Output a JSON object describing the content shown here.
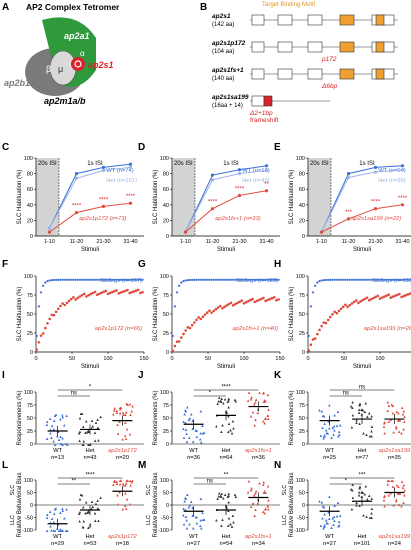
{
  "panel_letters": [
    "A",
    "B",
    "C",
    "D",
    "E",
    "F",
    "G",
    "H",
    "I",
    "J",
    "K",
    "L",
    "M",
    "N"
  ],
  "panel_a": {
    "title": "AP2 Complex Tetromer",
    "subunit_labels": {
      "alpha": "ap2a1",
      "sigma": "ap2s1",
      "beta": "ap2b1",
      "mu": "μ",
      "bottom": "ap2m1a/b",
      "greek_alpha": "α",
      "greek_beta": "β"
    },
    "colors": {
      "alpha": "#2e9a3c",
      "beta": "#7a7a7a",
      "sigma": "#d8232a",
      "mu": "#d9d9d9"
    }
  },
  "panel_b": {
    "header": "Target Binding Motif",
    "rows": [
      {
        "name": "ap2s1",
        "length": "(142 aa)"
      },
      {
        "name": "ap2s1p172",
        "length": "(104 aa)",
        "annotation": "p172"
      },
      {
        "name": "ap2s1fs+1",
        "length": "(140 aa)",
        "annotation": "Δ6bp"
      },
      {
        "name": "ap2s1sa199",
        "length": "(16aa + 14)",
        "annotation": "Δ2+1bp",
        "annotation2": "frameshift"
      }
    ]
  },
  "habituation_charts": [
    {
      "panel": "C",
      "ylabel": "SLC Habituation (%)",
      "xlabel": "Stimuli",
      "isi_20": "20s ISI",
      "isi_1": "1s ISI",
      "categories": [
        "1-10",
        "11-20",
        "21-30",
        "31-40"
      ],
      "ylim": [
        0,
        100
      ],
      "yticks": [
        0,
        20,
        40,
        60,
        80,
        100
      ],
      "series": [
        {
          "name": "WT",
          "n": "(n=74)",
          "values": [
            10,
            80,
            88,
            92
          ],
          "color": "#3a6fd8"
        },
        {
          "name": "Het",
          "n": "(n=151)",
          "values": [
            10,
            74,
            84,
            88
          ],
          "color": "#9bb5ea"
        },
        {
          "name": "ap2s1p172",
          "n": "(n=73)",
          "values": [
            5,
            30,
            38,
            42
          ],
          "color": "#e04a3c"
        }
      ],
      "stars": [
        "****",
        "****",
        "****"
      ]
    },
    {
      "panel": "D",
      "ylabel": "SLC Habituation (%)",
      "xlabel": "Stimuli",
      "isi_20": "20s ISI",
      "isi_1": "1s ISI",
      "categories": [
        "1-10",
        "11-20",
        "21-30",
        "31-40"
      ],
      "ylim": [
        0,
        100
      ],
      "yticks": [
        0,
        20,
        40,
        60,
        80,
        100
      ],
      "series": [
        {
          "name": "WT",
          "n": "(n=18)",
          "values": [
            5,
            78,
            85,
            90
          ],
          "color": "#3a6fd8"
        },
        {
          "name": "Het",
          "n": "(n=49)",
          "values": [
            5,
            72,
            80,
            84
          ],
          "color": "#9bb5ea"
        },
        {
          "name": "ap2s1fs+1",
          "n": "(n=33)",
          "values": [
            5,
            35,
            52,
            58
          ],
          "color": "#e04a3c"
        }
      ],
      "stars": [
        "****",
        "****",
        "**"
      ]
    },
    {
      "panel": "E",
      "ylabel": "SLC Habituation (%)",
      "xlabel": "Stimuli",
      "isi_20": "20s ISI",
      "isi_1": "1s ISI",
      "categories": [
        "1-10",
        "11-20",
        "21-30",
        "31-40"
      ],
      "ylim": [
        0,
        100
      ],
      "yticks": [
        0,
        20,
        40,
        60,
        80,
        100
      ],
      "series": [
        {
          "name": "WT",
          "n": "(n=54)",
          "values": [
            5,
            80,
            88,
            90
          ],
          "color": "#3a6fd8"
        },
        {
          "name": "Het",
          "n": "(n=95)",
          "values": [
            5,
            75,
            82,
            85
          ],
          "color": "#9bb5ea"
        },
        {
          "name": "ap2s1sa199",
          "n": "(n=22)",
          "values": [
            5,
            22,
            35,
            40
          ],
          "color": "#e04a3c"
        }
      ],
      "stars": [
        "***",
        "****",
        "****"
      ]
    }
  ],
  "curve_charts": [
    {
      "panel": "F",
      "ylabel": "SLC Habituation (%)",
      "xlabel": "Stimuli",
      "xticks": [
        0,
        50,
        100,
        150
      ],
      "yticks": [
        0,
        25,
        50,
        75,
        100
      ],
      "siblings": "Siblings (n=167)",
      "mutant": "ap2s1p172 (n=65)",
      "mut_plateau": 80,
      "mut_rate": 0.04
    },
    {
      "panel": "G",
      "ylabel": "SLC Habituation (%)",
      "xlabel": "Stimuli",
      "xticks": [
        0,
        50,
        100,
        150
      ],
      "yticks": [
        0,
        25,
        50,
        75,
        100
      ],
      "siblings": "Siblings (n=123)",
      "mutant": "ap2s1fs+1 (n=40)",
      "mut_plateau": 72,
      "mut_rate": 0.025
    },
    {
      "panel": "H",
      "ylabel": "SLC Habituation (%)",
      "xlabel": "Stimuli",
      "xticks": [
        0,
        50,
        100,
        150
      ],
      "yticks": [
        0,
        25,
        50,
        75,
        100
      ],
      "siblings": "Siblings (n=103)",
      "mutant": "ap2s1sa199 (n=28)",
      "mut_plateau": 76,
      "mut_rate": 0.03
    }
  ],
  "responsiveness_charts": [
    {
      "panel": "I",
      "ylabel": "Responsiveness (%)",
      "yticks": [
        0,
        25,
        50,
        75,
        100
      ],
      "groups": [
        {
          "label": "WT",
          "n": "n=13",
          "mean": 25
        },
        {
          "label": "Het",
          "n": "n=43",
          "mean": 28
        },
        {
          "label": "ap2s1p172",
          "n": "n=20",
          "mean": 45
        }
      ],
      "sig": [
        {
          "text": "ns",
          "from": 0,
          "to": 1,
          "level": 0
        },
        {
          "text": "*",
          "from": 0,
          "to": 2,
          "level": 1
        }
      ]
    },
    {
      "panel": "J",
      "ylabel": "Responsiveness (%)",
      "yticks": [
        0,
        25,
        50,
        75,
        100
      ],
      "groups": [
        {
          "label": "WT",
          "n": "n=36",
          "mean": 38
        },
        {
          "label": "Het",
          "n": "n=64",
          "mean": 55
        },
        {
          "label": "ap2s1fs+1",
          "n": "n=36",
          "mean": 72
        }
      ],
      "sig": [
        {
          "text": "*",
          "from": 0,
          "to": 1,
          "level": 0
        },
        {
          "text": "****",
          "from": 0,
          "to": 2,
          "level": 1
        }
      ]
    },
    {
      "panel": "K",
      "ylabel": "Responsiveness (%)",
      "yticks": [
        0,
        25,
        50,
        75,
        100
      ],
      "groups": [
        {
          "label": "WT",
          "n": "n=25",
          "mean": 45
        },
        {
          "label": "Het",
          "n": "n=77",
          "mean": 48
        },
        {
          "label": "ap2s1sa199",
          "n": "n=35",
          "mean": 48
        }
      ],
      "sig": [
        {
          "text": "ns",
          "from": 0,
          "to": 1,
          "level": 0
        },
        {
          "text": "ns",
          "from": 0,
          "to": 2,
          "level": 1
        }
      ]
    }
  ],
  "bias_charts": [
    {
      "panel": "L",
      "ylabel": "Relative Behavioral Bias",
      "llc": "LLC",
      "slc": "SLC",
      "yticks": [
        -100,
        -50,
        0,
        50,
        100
      ],
      "groups": [
        {
          "label": "WT",
          "n": "n=29",
          "mean": -75
        },
        {
          "label": "Het",
          "n": "n=53",
          "mean": -20
        },
        {
          "label": "ap2s1p172",
          "n": "n=18",
          "mean": 55
        }
      ],
      "sig": [
        {
          "text": "**",
          "from": 0,
          "to": 1,
          "level": 0
        },
        {
          "text": "****",
          "from": 0,
          "to": 2,
          "level": 1
        }
      ]
    },
    {
      "panel": "M",
      "ylabel": "Relative Behavioral Bias",
      "llc": "LLC",
      "slc": "SLC",
      "yticks": [
        -100,
        -50,
        0,
        50,
        100
      ],
      "groups": [
        {
          "label": "WT",
          "n": "n=27",
          "mean": -25
        },
        {
          "label": "Het",
          "n": "n=54",
          "mean": -20
        },
        {
          "label": "ap2s1fs+1",
          "n": "n=34",
          "mean": 30
        }
      ],
      "sig": [
        {
          "text": "ns",
          "from": 0,
          "to": 1,
          "level": 0
        },
        {
          "text": "**",
          "from": 0,
          "to": 2,
          "level": 1
        }
      ]
    },
    {
      "panel": "N",
      "ylabel": "Relative Behavioral Bias",
      "llc": "LLC",
      "slc": "SLC",
      "yticks": [
        -100,
        -50,
        0,
        50,
        100
      ],
      "groups": [
        {
          "label": "WT",
          "n": "n=27",
          "mean": -25
        },
        {
          "label": "Het",
          "n": "n=101",
          "mean": 15
        },
        {
          "label": "ap2s1sa199",
          "n": "n=24",
          "mean": 50
        }
      ],
      "sig": [
        {
          "text": "*",
          "from": 0,
          "to": 1,
          "level": 0
        },
        {
          "text": "***",
          "from": 0,
          "to": 2,
          "level": 1
        }
      ]
    }
  ]
}
